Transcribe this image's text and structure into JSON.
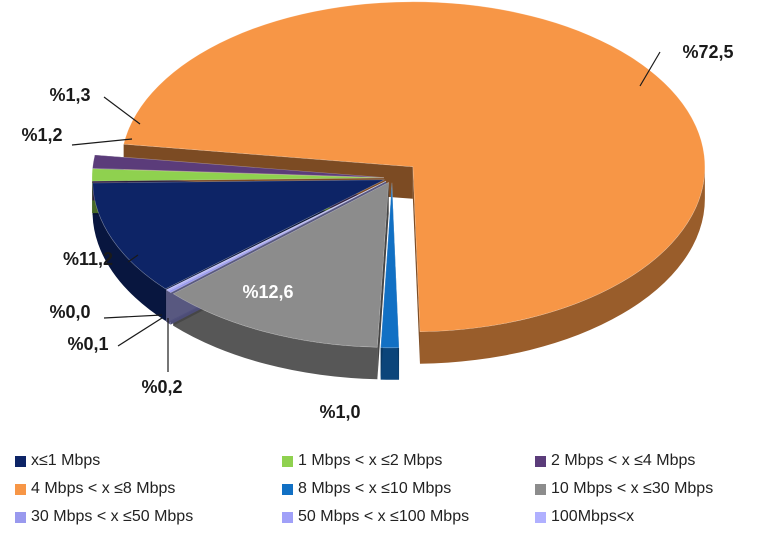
{
  "chart_data": {
    "type": "pie",
    "style": "3d-exploded",
    "legend_position": "bottom",
    "slices": [
      {
        "name": "x≤1 Mbps",
        "value": 11.2,
        "label": "%11,2",
        "color": "#0d2466"
      },
      {
        "name": "1 Mbps < x ≤2 Mbps",
        "value": 1.2,
        "label": "%1,2",
        "color": "#8fd14f"
      },
      {
        "name": "2 Mbps < x ≤4 Mbps",
        "value": 1.3,
        "label": "%1,3",
        "color": "#5b3c7a"
      },
      {
        "name": "4 Mbps < x ≤8 Mbps",
        "value": 72.5,
        "label": "%72,5",
        "color": "#f79646"
      },
      {
        "name": "8 Mbps < x ≤10 Mbps",
        "value": 1.0,
        "label": "%1,0",
        "color": "#1170c4"
      },
      {
        "name": "10 Mbps < x ≤30 Mbps",
        "value": 12.6,
        "label": "%12,6",
        "color": "#8c8c8c"
      },
      {
        "name": "30 Mbps < x ≤50 Mbps",
        "value": 0.2,
        "label": "%0,2",
        "color": "#9999ee"
      },
      {
        "name": "50 Mbps < x ≤100 Mbps",
        "value": 0.1,
        "label": "%0,1",
        "color": "#a0a0f8"
      },
      {
        "name": "100Mbps<x",
        "value": 0.0,
        "label": "%0,0",
        "color": "#b0b0ff"
      }
    ]
  }
}
